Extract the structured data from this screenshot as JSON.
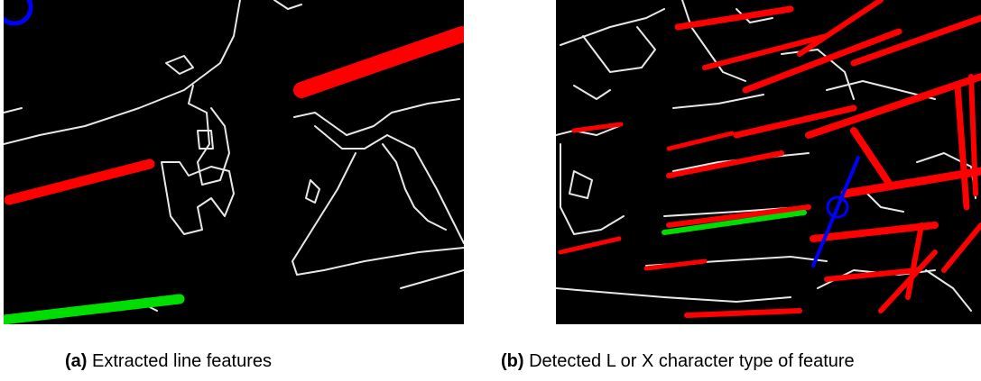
{
  "figure": {
    "panel_a": {
      "caption_tag": "(a)",
      "caption_text": "Extracted line features"
    },
    "panel_b": {
      "caption_tag": "(b)",
      "caption_text": "Detected L or X character type of feature"
    }
  },
  "colors": {
    "background": "#000000",
    "edges": "#e8e8e8",
    "line_feature": "#ff0000",
    "highlighted_line": "#00dd00",
    "junction": "#0000ff"
  }
}
